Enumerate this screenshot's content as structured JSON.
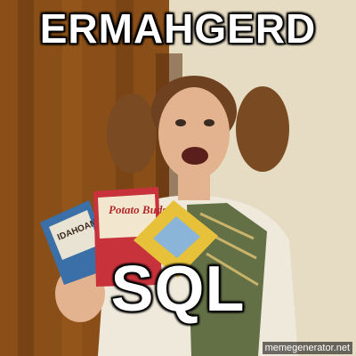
{
  "meme": {
    "top_text": "ERMAHGERD",
    "bottom_text": "SQL",
    "watermark": "memegenerator.net"
  },
  "photo": {
    "subject": "girl with pigtails holding boxed food packages",
    "packages": [
      "IDAHOAN",
      "Potato Buds"
    ]
  },
  "colors": {
    "caption_fill": "#ffffff",
    "caption_stroke": "#000000",
    "wall_left": "#8a4e18",
    "wall_right": "#e8dcc4",
    "hair": "#7a4a22",
    "skin": "#e2b38e"
  }
}
